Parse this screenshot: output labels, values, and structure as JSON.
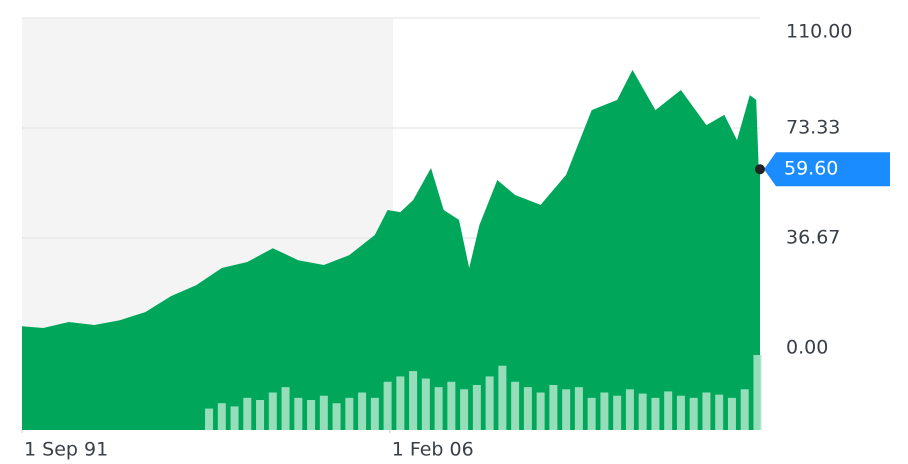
{
  "chart_data": {
    "type": "area",
    "x": [
      1991.667,
      1992.5,
      1993.5,
      1994.5,
      1995.5,
      1996.5,
      1997.5,
      1998.5,
      1999.5,
      2000.5,
      2001.5,
      2002.5,
      2003.5,
      2004.5,
      2005.5,
      2006.0,
      2006.5,
      2007.0,
      2007.7,
      2008.2,
      2008.8,
      2009.2,
      2009.6,
      2010.3,
      2011.0,
      2012.0,
      2013.0,
      2014.0,
      2015.0,
      2015.6,
      2016.5,
      2017.5,
      2018.5,
      2019.2,
      2019.7,
      2020.2,
      2020.45,
      2020.55,
      2020.6
    ],
    "values": [
      7.3,
      6.7,
      8.7,
      7.7,
      9.3,
      12,
      17.3,
      21,
      26.7,
      28.7,
      33.3,
      29.3,
      27.7,
      31,
      37.7,
      46,
      45.3,
      49.3,
      60,
      46,
      42.7,
      26.7,
      41,
      56,
      51,
      47.7,
      57.7,
      79.3,
      82.7,
      92.7,
      79.3,
      86,
      74.3,
      77.7,
      69.3,
      84.3,
      82.7,
      60,
      59.6
    ],
    "color": "#00a65a",
    "current": {
      "value": 59.6,
      "label": "59.60"
    },
    "volume": {
      "x": [
        1999.0,
        1999.5,
        2000.0,
        2000.5,
        2001.0,
        2001.5,
        2002.0,
        2002.5,
        2003.0,
        2003.5,
        2004.0,
        2004.5,
        2005.0,
        2005.5,
        2006.0,
        2006.5,
        2007.0,
        2007.5,
        2008.0,
        2008.5,
        2009.0,
        2009.5,
        2010.0,
        2010.5,
        2011.0,
        2011.5,
        2012.0,
        2012.5,
        2013.0,
        2013.5,
        2014.0,
        2014.5,
        2015.0,
        2015.5,
        2016.0,
        2016.5,
        2017.0,
        2017.5,
        2018.0,
        2018.5,
        2019.0,
        2019.5,
        2020.0,
        2020.5
      ],
      "values": [
        20,
        25,
        22,
        30,
        28,
        35,
        40,
        30,
        28,
        32,
        25,
        30,
        35,
        30,
        45,
        50,
        55,
        48,
        40,
        45,
        38,
        42,
        50,
        60,
        45,
        40,
        35,
        42,
        38,
        40,
        30,
        35,
        32,
        38,
        34,
        30,
        36,
        32,
        30,
        35,
        33,
        30,
        38,
        70
      ],
      "color": "#a6e3c4"
    },
    "xlim": [
      1991.667,
      2020.6
    ],
    "xticks": [
      {
        "value": 1991.667,
        "label": "1 Sep 91"
      },
      {
        "value": 2006.083,
        "label": "1 Feb 06"
      }
    ],
    "ylim": [
      -27.3,
      110
    ],
    "yticks": [
      {
        "value": 110,
        "label": "110.00"
      },
      {
        "value": 73.33,
        "label": "73.33"
      },
      {
        "value": 36.67,
        "label": "36.67"
      },
      {
        "value": 0,
        "label": "0.00"
      }
    ],
    "grid": true
  }
}
